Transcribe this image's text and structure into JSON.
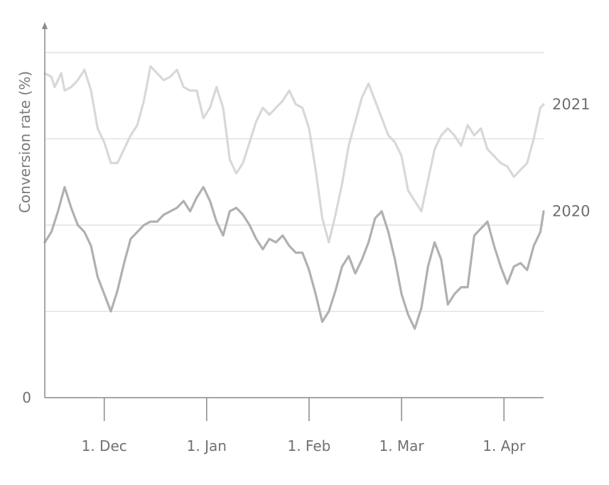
{
  "chart_data": {
    "type": "line",
    "title": "",
    "xlabel": "",
    "ylabel": "Conversion rate (%)",
    "y_ticks": [
      {
        "value": 0,
        "label": "0"
      }
    ],
    "ylim": [
      0,
      100
    ],
    "x_domain": [
      "2020-11-13",
      "2021-04-13"
    ],
    "x_ticks": [
      {
        "date": "2020-12-01",
        "label": "1. Dec"
      },
      {
        "date": "2021-01-01",
        "label": "1. Jan"
      },
      {
        "date": "2021-02-01",
        "label": "1. Feb"
      },
      {
        "date": "2021-03-01",
        "label": "1. Mar"
      },
      {
        "date": "2021-04-01",
        "label": "1. Apr"
      }
    ],
    "y_gridlines": [
      25,
      50,
      75,
      100
    ],
    "grid": true,
    "legend": "inline-right",
    "series": [
      {
        "name": "2021",
        "color": "#d8d8d8",
        "points": [
          [
            "2020-11-13",
            94
          ],
          [
            "2020-11-15",
            93
          ],
          [
            "2020-11-16",
            90
          ],
          [
            "2020-11-18",
            94
          ],
          [
            "2020-11-19",
            89
          ],
          [
            "2020-11-21",
            90
          ],
          [
            "2020-11-23",
            92
          ],
          [
            "2020-11-25",
            95
          ],
          [
            "2020-11-27",
            89
          ],
          [
            "2020-11-29",
            78
          ],
          [
            "2020-12-01",
            74
          ],
          [
            "2020-12-03",
            68
          ],
          [
            "2020-12-05",
            68
          ],
          [
            "2020-12-07",
            72
          ],
          [
            "2020-12-09",
            76
          ],
          [
            "2020-12-11",
            79
          ],
          [
            "2020-12-13",
            86
          ],
          [
            "2020-12-15",
            96
          ],
          [
            "2020-12-17",
            94
          ],
          [
            "2020-12-19",
            92
          ],
          [
            "2020-12-21",
            93
          ],
          [
            "2020-12-23",
            95
          ],
          [
            "2020-12-25",
            90
          ],
          [
            "2020-12-27",
            89
          ],
          [
            "2020-12-29",
            89
          ],
          [
            "2020-12-31",
            81
          ],
          [
            "2021-01-02",
            84
          ],
          [
            "2021-01-04",
            90
          ],
          [
            "2021-01-06",
            84
          ],
          [
            "2021-01-08",
            69
          ],
          [
            "2021-01-10",
            65
          ],
          [
            "2021-01-12",
            68
          ],
          [
            "2021-01-14",
            74
          ],
          [
            "2021-01-16",
            80
          ],
          [
            "2021-01-18",
            84
          ],
          [
            "2021-01-20",
            82
          ],
          [
            "2021-01-22",
            84
          ],
          [
            "2021-01-24",
            86
          ],
          [
            "2021-01-26",
            89
          ],
          [
            "2021-01-28",
            85
          ],
          [
            "2021-01-30",
            84
          ],
          [
            "2021-02-01",
            78
          ],
          [
            "2021-02-03",
            66
          ],
          [
            "2021-02-05",
            52
          ],
          [
            "2021-02-07",
            45
          ],
          [
            "2021-02-09",
            53
          ],
          [
            "2021-02-11",
            62
          ],
          [
            "2021-02-13",
            73
          ],
          [
            "2021-02-15",
            80
          ],
          [
            "2021-02-17",
            87
          ],
          [
            "2021-02-19",
            91
          ],
          [
            "2021-02-21",
            86
          ],
          [
            "2021-02-23",
            81
          ],
          [
            "2021-02-25",
            76
          ],
          [
            "2021-02-27",
            74
          ],
          [
            "2021-03-01",
            70
          ],
          [
            "2021-03-03",
            60
          ],
          [
            "2021-03-05",
            57
          ],
          [
            "2021-03-07",
            54
          ],
          [
            "2021-03-09",
            63
          ],
          [
            "2021-03-11",
            72
          ],
          [
            "2021-03-13",
            76
          ],
          [
            "2021-03-15",
            78
          ],
          [
            "2021-03-17",
            76
          ],
          [
            "2021-03-19",
            73
          ],
          [
            "2021-03-21",
            79
          ],
          [
            "2021-03-23",
            76
          ],
          [
            "2021-03-25",
            78
          ],
          [
            "2021-03-27",
            72
          ],
          [
            "2021-03-29",
            70
          ],
          [
            "2021-03-31",
            68
          ],
          [
            "2021-04-02",
            67
          ],
          [
            "2021-04-04",
            64
          ],
          [
            "2021-04-06",
            66
          ],
          [
            "2021-04-08",
            68
          ],
          [
            "2021-04-10",
            75
          ],
          [
            "2021-04-12",
            84
          ],
          [
            "2021-04-13",
            85
          ]
        ]
      },
      {
        "name": "2020",
        "color": "#b0b0b0",
        "points": [
          [
            "2020-11-13",
            45
          ],
          [
            "2020-11-15",
            48
          ],
          [
            "2020-11-17",
            54
          ],
          [
            "2020-11-19",
            61
          ],
          [
            "2020-11-21",
            55
          ],
          [
            "2020-11-23",
            50
          ],
          [
            "2020-11-25",
            48
          ],
          [
            "2020-11-27",
            44
          ],
          [
            "2020-11-29",
            35
          ],
          [
            "2020-12-01",
            30
          ],
          [
            "2020-12-03",
            25
          ],
          [
            "2020-12-05",
            31
          ],
          [
            "2020-12-07",
            39
          ],
          [
            "2020-12-09",
            46
          ],
          [
            "2020-12-11",
            48
          ],
          [
            "2020-12-13",
            50
          ],
          [
            "2020-12-15",
            51
          ],
          [
            "2020-12-17",
            51
          ],
          [
            "2020-12-19",
            53
          ],
          [
            "2020-12-21",
            54
          ],
          [
            "2020-12-23",
            55
          ],
          [
            "2020-12-25",
            57
          ],
          [
            "2020-12-27",
            54
          ],
          [
            "2020-12-29",
            58
          ],
          [
            "2020-12-31",
            61
          ],
          [
            "2021-01-02",
            57
          ],
          [
            "2021-01-04",
            51
          ],
          [
            "2021-01-06",
            47
          ],
          [
            "2021-01-08",
            54
          ],
          [
            "2021-01-10",
            55
          ],
          [
            "2021-01-12",
            53
          ],
          [
            "2021-01-14",
            50
          ],
          [
            "2021-01-16",
            46
          ],
          [
            "2021-01-18",
            43
          ],
          [
            "2021-01-20",
            46
          ],
          [
            "2021-01-22",
            45
          ],
          [
            "2021-01-24",
            47
          ],
          [
            "2021-01-26",
            44
          ],
          [
            "2021-01-28",
            42
          ],
          [
            "2021-01-30",
            42
          ],
          [
            "2021-02-01",
            37
          ],
          [
            "2021-02-03",
            30
          ],
          [
            "2021-02-05",
            22
          ],
          [
            "2021-02-07",
            25
          ],
          [
            "2021-02-09",
            31
          ],
          [
            "2021-02-11",
            38
          ],
          [
            "2021-02-13",
            41
          ],
          [
            "2021-02-15",
            36
          ],
          [
            "2021-02-17",
            40
          ],
          [
            "2021-02-19",
            45
          ],
          [
            "2021-02-21",
            52
          ],
          [
            "2021-02-23",
            54
          ],
          [
            "2021-02-25",
            48
          ],
          [
            "2021-02-27",
            40
          ],
          [
            "2021-03-01",
            30
          ],
          [
            "2021-03-03",
            24
          ],
          [
            "2021-03-05",
            20
          ],
          [
            "2021-03-07",
            26
          ],
          [
            "2021-03-09",
            38
          ],
          [
            "2021-03-11",
            45
          ],
          [
            "2021-03-13",
            40
          ],
          [
            "2021-03-15",
            27
          ],
          [
            "2021-03-17",
            30
          ],
          [
            "2021-03-19",
            32
          ],
          [
            "2021-03-21",
            32
          ],
          [
            "2021-03-23",
            47
          ],
          [
            "2021-03-25",
            49
          ],
          [
            "2021-03-27",
            51
          ],
          [
            "2021-03-29",
            44
          ],
          [
            "2021-03-31",
            38
          ],
          [
            "2021-04-02",
            33
          ],
          [
            "2021-04-04",
            38
          ],
          [
            "2021-04-06",
            39
          ],
          [
            "2021-04-08",
            37
          ],
          [
            "2021-04-10",
            44
          ],
          [
            "2021-04-12",
            48
          ],
          [
            "2021-04-13",
            54
          ]
        ]
      }
    ]
  }
}
